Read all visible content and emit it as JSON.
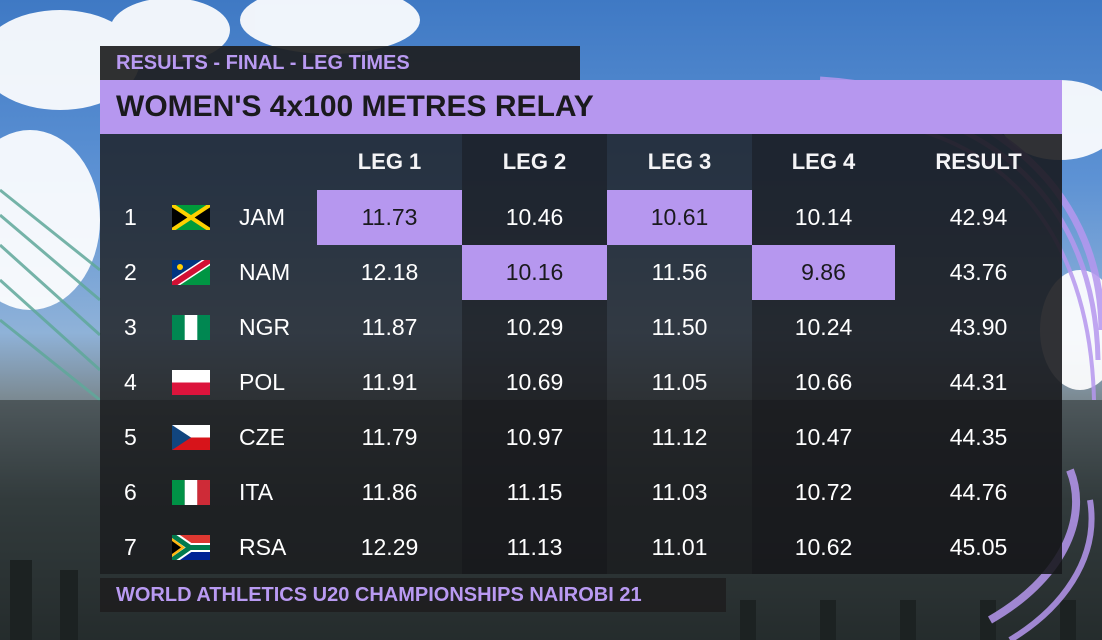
{
  "header": {
    "label": "RESULTS - FINAL - LEG TIMES",
    "title": "WOMEN'S 4x100 METRES RELAY"
  },
  "columns": [
    "LEG 1",
    "LEG 2",
    "LEG 3",
    "LEG 4",
    "RESULT"
  ],
  "rows": [
    {
      "rank": "1",
      "noc": "JAM",
      "flag": "jamaica-flag-icon",
      "legs": [
        "11.73",
        "10.46",
        "10.61",
        "10.14"
      ],
      "result": "42.94"
    },
    {
      "rank": "2",
      "noc": "NAM",
      "flag": "namibia-flag-icon",
      "legs": [
        "12.18",
        "10.16",
        "11.56",
        "9.86"
      ],
      "result": "43.76"
    },
    {
      "rank": "3",
      "noc": "NGR",
      "flag": "nigeria-flag-icon",
      "legs": [
        "11.87",
        "10.29",
        "11.50",
        "10.24"
      ],
      "result": "43.90"
    },
    {
      "rank": "4",
      "noc": "POL",
      "flag": "poland-flag-icon",
      "legs": [
        "11.91",
        "10.69",
        "11.05",
        "10.66"
      ],
      "result": "44.31"
    },
    {
      "rank": "5",
      "noc": "CZE",
      "flag": "czechia-flag-icon",
      "legs": [
        "11.79",
        "10.97",
        "11.12",
        "10.47"
      ],
      "result": "44.35"
    },
    {
      "rank": "6",
      "noc": "ITA",
      "flag": "italy-flag-icon",
      "legs": [
        "11.86",
        "11.15",
        "11.03",
        "10.72"
      ],
      "result": "44.76"
    },
    {
      "rank": "7",
      "noc": "RSA",
      "flag": "south-africa-flag-icon",
      "legs": [
        "12.29",
        "11.13",
        "11.01",
        "10.62"
      ],
      "result": "45.05"
    }
  ],
  "fastest_leg_row": [
    1,
    2,
    1,
    2
  ],
  "footer": {
    "event": "WORLD ATHLETICS U20 CHAMPIONSHIPS NAIROBI 21"
  },
  "colors": {
    "accent": "#b697ef",
    "panel": "#1a1b1e",
    "text": "#ffffff"
  }
}
